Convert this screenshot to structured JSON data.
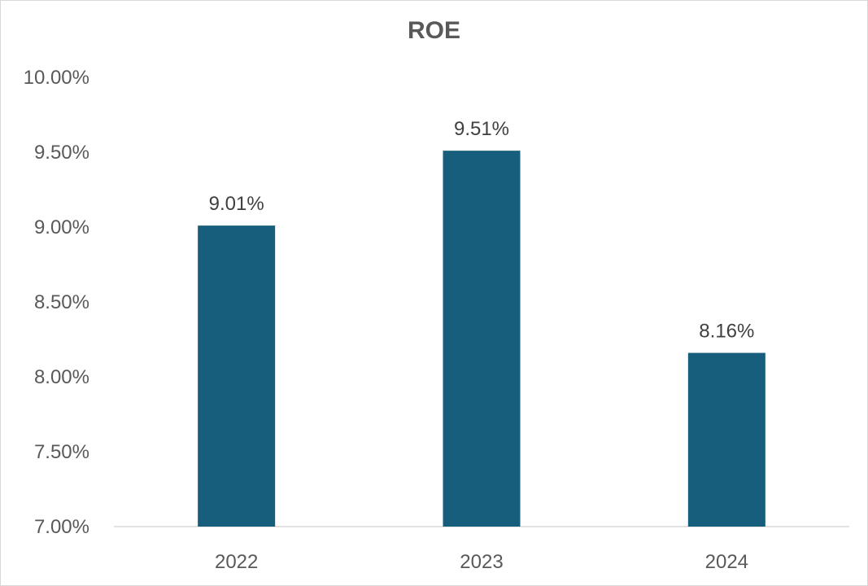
{
  "chart_data": {
    "type": "bar",
    "title": "ROE",
    "xlabel": "",
    "ylabel": "",
    "categories": [
      "2022",
      "2023",
      "2024"
    ],
    "values": [
      9.01,
      9.51,
      8.16
    ],
    "data_labels": [
      "9.01%",
      "9.51%",
      "8.16%"
    ],
    "ylim": [
      7.0,
      10.0
    ],
    "yticks": [
      7.0,
      7.5,
      8.0,
      8.5,
      9.0,
      9.5,
      10.0
    ],
    "ytick_labels": [
      "7.00%",
      "7.50%",
      "8.00%",
      "8.50%",
      "9.00%",
      "9.50%",
      "10.00%"
    ],
    "grid": false,
    "legend": "none",
    "bar_color": "#175e7d",
    "axis_color": "#d9d9d9"
  }
}
